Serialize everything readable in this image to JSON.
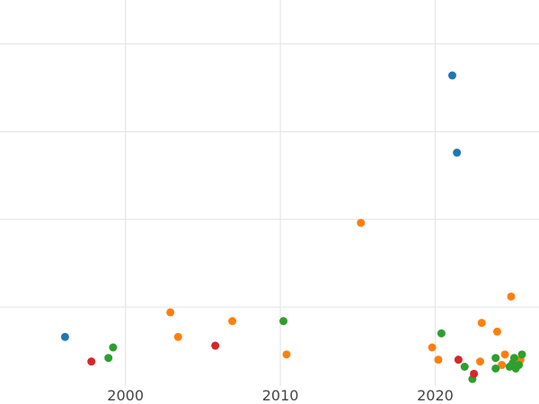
{
  "chart_data": {
    "type": "scatter",
    "title": "",
    "xlabel": "",
    "ylabel": "",
    "xlim": [
      1991.9,
      2026.7
    ],
    "ylim": [
      -0.5,
      21.5
    ],
    "x_ticks": [
      2000,
      2010,
      2020
    ],
    "x_tick_labels": [
      "2000",
      "2010",
      "2020"
    ],
    "y_gridlines": [
      4,
      9,
      14,
      19
    ],
    "grid": true,
    "legend": "none",
    "series": [
      {
        "color": "#1f77b4",
        "points": [
          {
            "x": 1996.1,
            "y": 2.3
          },
          {
            "x": 2021.1,
            "y": 17.2
          },
          {
            "x": 2021.4,
            "y": 12.8
          }
        ]
      },
      {
        "color": "#ff7f0e",
        "points": [
          {
            "x": 2002.9,
            "y": 3.7
          },
          {
            "x": 2003.4,
            "y": 2.3
          },
          {
            "x": 2006.9,
            "y": 3.2
          },
          {
            "x": 2010.4,
            "y": 1.3
          },
          {
            "x": 2015.2,
            "y": 8.8
          },
          {
            "x": 2019.8,
            "y": 1.7
          },
          {
            "x": 2020.2,
            "y": 1.0
          },
          {
            "x": 2022.9,
            "y": 0.9
          },
          {
            "x": 2023.0,
            "y": 3.1
          },
          {
            "x": 2024.0,
            "y": 2.6
          },
          {
            "x": 2024.3,
            "y": 0.7
          },
          {
            "x": 2024.5,
            "y": 1.3
          },
          {
            "x": 2024.9,
            "y": 4.6
          },
          {
            "x": 2025.5,
            "y": 1.0
          }
        ]
      },
      {
        "color": "#2ca02c",
        "points": [
          {
            "x": 1998.9,
            "y": 1.1
          },
          {
            "x": 1999.2,
            "y": 1.7
          },
          {
            "x": 2010.2,
            "y": 3.2
          },
          {
            "x": 2020.4,
            "y": 2.5
          },
          {
            "x": 2021.9,
            "y": 0.6
          },
          {
            "x": 2022.4,
            "y": -0.1
          },
          {
            "x": 2023.9,
            "y": 0.5
          },
          {
            "x": 2023.9,
            "y": 1.1
          },
          {
            "x": 2024.8,
            "y": 0.6
          },
          {
            "x": 2025.0,
            "y": 0.8
          },
          {
            "x": 2025.1,
            "y": 1.1
          },
          {
            "x": 2025.2,
            "y": 0.5
          },
          {
            "x": 2025.4,
            "y": 0.7
          },
          {
            "x": 2025.6,
            "y": 1.3
          }
        ]
      },
      {
        "color": "#d62728",
        "points": [
          {
            "x": 1997.8,
            "y": 0.9
          },
          {
            "x": 2005.8,
            "y": 1.8
          },
          {
            "x": 2021.5,
            "y": 1.0
          },
          {
            "x": 2022.5,
            "y": 0.2
          }
        ]
      }
    ]
  }
}
